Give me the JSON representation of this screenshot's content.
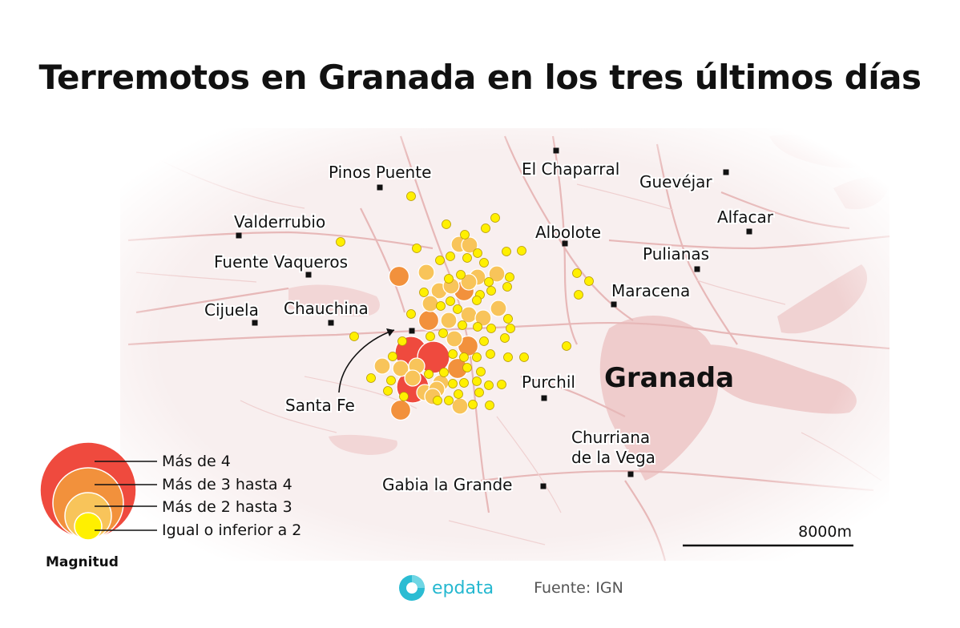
{
  "title": "Terremotos en Granada en los tres últimos días",
  "map": {
    "city_label": "Granada",
    "places": [
      {
        "name": "Pinos Puente",
        "marker": "square"
      },
      {
        "name": "El Chaparral",
        "marker": "square"
      },
      {
        "name": "Guevéjar",
        "marker": "square"
      },
      {
        "name": "Valderrubio",
        "marker": "square"
      },
      {
        "name": "Alfacar",
        "marker": "square"
      },
      {
        "name": "Albolote",
        "marker": "square"
      },
      {
        "name": "Pulianas",
        "marker": "square"
      },
      {
        "name": "Fuente Vaqueros",
        "marker": "square"
      },
      {
        "name": "Maracena",
        "marker": "square"
      },
      {
        "name": "Cijuela",
        "marker": "square"
      },
      {
        "name": "Chauchina",
        "marker": "square"
      },
      {
        "name": "Santa Fe",
        "marker": "square"
      },
      {
        "name": "Purchil",
        "marker": "square"
      },
      {
        "name": "Churriana",
        "marker": "square"
      },
      {
        "name": "de la Vega",
        "marker": "none"
      },
      {
        "name": "Gabia la Grande",
        "marker": "square"
      }
    ],
    "scale_label": "8000m",
    "colors": {
      "background": "#f7eeee",
      "urban": "#efc8c8",
      "roads": "#e5b5b5",
      "magnitude_gt4": "#ef4a3e",
      "magnitude_3_4": "#f2913c",
      "magnitude_2_3": "#f8c45a",
      "magnitude_le2": "#fff000"
    }
  },
  "legend": {
    "title": "Magnitud",
    "items": [
      {
        "label": "Más de 4",
        "color": "#ef4a3e"
      },
      {
        "label": "Más de 3 hasta 4",
        "color": "#f2913c"
      },
      {
        "label": "Más de 2 hasta 3",
        "color": "#f8c45a"
      },
      {
        "label": "Igual o inferior a 2",
        "color": "#fff000"
      }
    ]
  },
  "source": {
    "logo_text": "epdata",
    "text": "Fuente: IGN"
  }
}
